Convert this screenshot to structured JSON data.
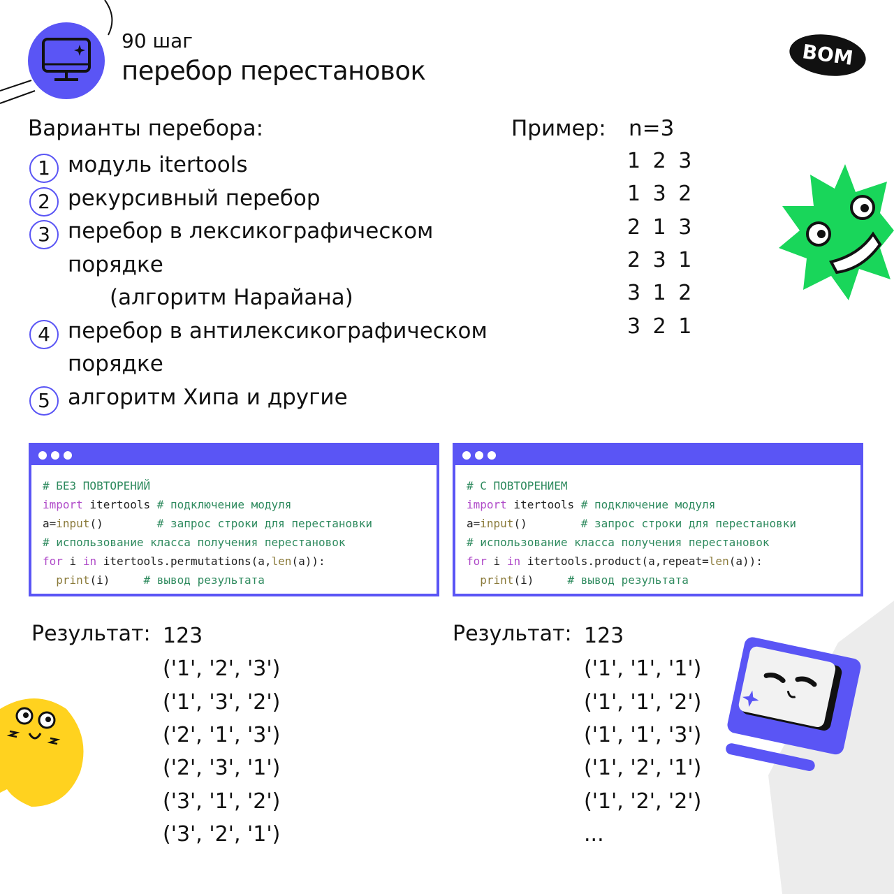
{
  "header": {
    "step": "90 шаг",
    "title": "перебор перестановок",
    "logo": "ВОМ"
  },
  "variants": {
    "heading": "Варианты перебора:",
    "items": [
      {
        "num": "1",
        "lines": [
          "модуль  itertools"
        ]
      },
      {
        "num": "2",
        "lines": [
          "рекурсивный перебор"
        ]
      },
      {
        "num": "3",
        "lines": [
          "перебор в лексикографическом",
          "порядке",
          "(алгоритм Нарайана)"
        ]
      },
      {
        "num": "4",
        "lines": [
          "перебор в антилексикографическом",
          "порядке"
        ]
      },
      {
        "num": "5",
        "lines": [
          "алгоритм Хипа и другие"
        ]
      }
    ]
  },
  "example": {
    "label": "Пример:",
    "n": "n=3",
    "perms": [
      "1 2 3",
      "1 3 2",
      "2 1 3",
      "2 3 1",
      "3 1 2",
      "3 2 1"
    ]
  },
  "code_blocks": [
    {
      "lines": [
        [
          [
            "cm",
            "# БЕЗ ПОВТОРЕНИЙ"
          ]
        ],
        [
          [
            "kw",
            "import"
          ],
          [
            "pl",
            " itertools "
          ],
          [
            "cm",
            "# подключение модуля"
          ]
        ],
        [
          [
            "pl",
            "a="
          ],
          [
            "fn",
            "input"
          ],
          [
            "pl",
            "()        "
          ],
          [
            "cm",
            "# запрос строки для перестановки"
          ]
        ],
        [
          [
            "cm",
            "# использование класса получения перестановок"
          ]
        ],
        [
          [
            "kw",
            "for"
          ],
          [
            "pl",
            " i "
          ],
          [
            "kw",
            "in"
          ],
          [
            "pl",
            " itertools.permutations(a,"
          ],
          [
            "fn",
            "len"
          ],
          [
            "pl",
            "(a)):"
          ]
        ],
        [
          [
            "pl",
            "  "
          ],
          [
            "fn",
            "print"
          ],
          [
            "pl",
            "(i)     "
          ],
          [
            "cm",
            "# вывод результата"
          ]
        ]
      ]
    },
    {
      "lines": [
        [
          [
            "cm",
            "# С ПОВТОРЕНИЕМ"
          ]
        ],
        [
          [
            "kw",
            "import"
          ],
          [
            "pl",
            " itertools "
          ],
          [
            "cm",
            "# подключение модуля"
          ]
        ],
        [
          [
            "pl",
            "a="
          ],
          [
            "fn",
            "input"
          ],
          [
            "pl",
            "()        "
          ],
          [
            "cm",
            "# запрос строки для перестановки"
          ]
        ],
        [
          [
            "cm",
            "# использование класса получения перестановок"
          ]
        ],
        [
          [
            "kw",
            "for"
          ],
          [
            "pl",
            " i "
          ],
          [
            "kw",
            "in"
          ],
          [
            "pl",
            " itertools.product(a,repeat="
          ],
          [
            "fn",
            "len"
          ],
          [
            "pl",
            "(a)):"
          ]
        ],
        [
          [
            "pl",
            "  "
          ],
          [
            "fn",
            "print"
          ],
          [
            "pl",
            "(i)     "
          ],
          [
            "cm",
            "# вывод результата"
          ]
        ]
      ]
    }
  ],
  "results": [
    {
      "label": "Результат:",
      "lines": [
        "123",
        "('1', '2', '3')",
        "('1', '3', '2')",
        "('2', '1', '3')",
        "('2', '3', '1')",
        "('3', '1', '2')",
        "('3', '2', '1')"
      ]
    },
    {
      "label": "Результат:",
      "lines": [
        "123",
        "('1', '1', '1')",
        "('1', '1', '2')",
        "('1', '1', '3')",
        "('1', '2', '1')",
        "('1', '2', '2')",
        "..."
      ]
    }
  ],
  "colors": {
    "accent": "#5a55f5",
    "green_mascot": "#19d65a",
    "yellow_mascot": "#ffd21f"
  }
}
